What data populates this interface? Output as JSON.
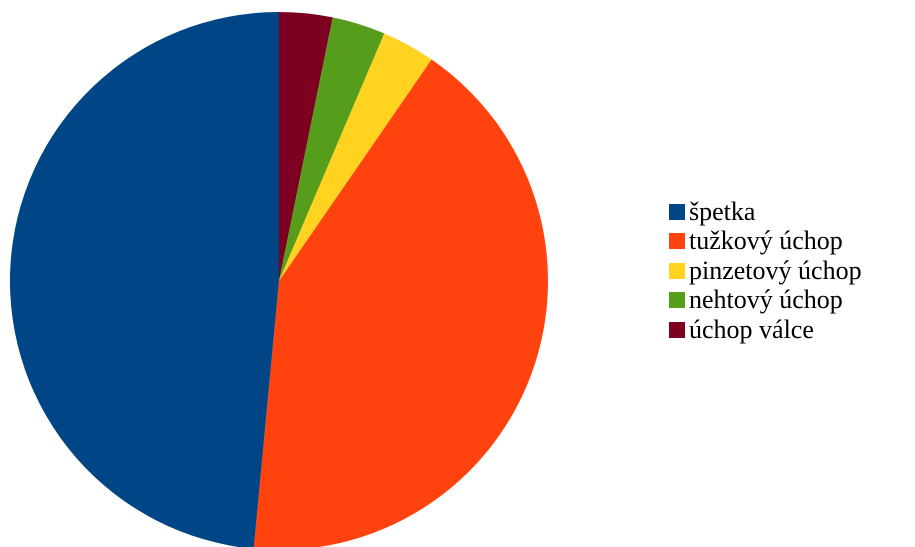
{
  "chart_data": {
    "type": "pie",
    "title": "",
    "legend_position": "right",
    "start_angle_deg": 0,
    "direction": "clockwise",
    "slices": [
      {
        "label": "úchop válce",
        "value": 3.2,
        "color": "#7e0021"
      },
      {
        "label": "nehtový úchop",
        "value": 3.2,
        "color": "#579d1c"
      },
      {
        "label": "pinzetový úchop",
        "value": 3.2,
        "color": "#ffd320"
      },
      {
        "label": "tužkový úchop",
        "value": 41.9,
        "color": "#ff420e"
      },
      {
        "label": "špetka",
        "value": 48.5,
        "color": "#004586"
      }
    ],
    "legend_order": [
      "špetka",
      "tužkový úchop",
      "pinzetový úchop",
      "nehtový úchop",
      "úchop válce"
    ]
  }
}
